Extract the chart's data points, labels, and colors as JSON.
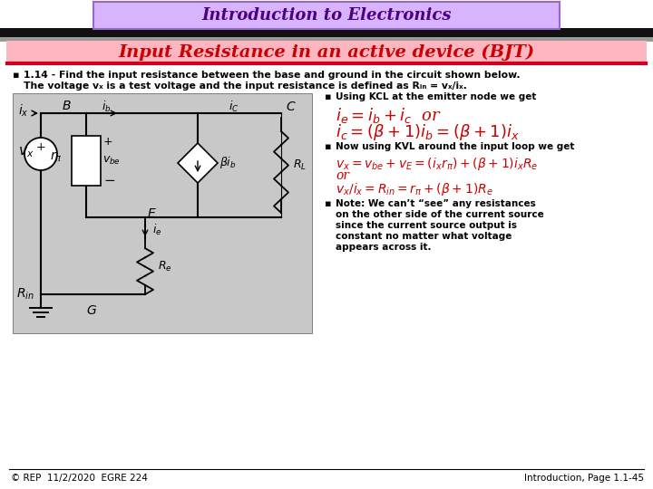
{
  "title": "Introduction to Electronics",
  "subtitle": "Input Resistance in an active device (BJT)",
  "title_bg": "#d8b4fe",
  "title_border": "#9966cc",
  "subtitle_bg": "#ffb6c1",
  "main_bg": "#ffffff",
  "title_color": "#4b0082",
  "subtitle_color": "#cc0000",
  "bullet1a": "1.14 - Find the input resistance between the base and ground in the circuit shown below.",
  "bullet1b": "The voltage vₓ is a test voltage and the input resistance is defined as Rᵢₙ = vₓ/iₓ.",
  "bullet2_hdr": "Using KCL at the emitter node we get",
  "bullet3_hdr": "Now using KVL around the input loop we get",
  "bullet4_lines": [
    "Note: We can’t “see” any resistances",
    "on the other side of the current source",
    "since the current source output is",
    "constant no matter what voltage",
    "appears across it."
  ],
  "footer_left": "© REP  11/2/2020  EGRE 224",
  "footer_right": "Introduction, Page 1.1-45",
  "circuit_bg": "#c8c8c8",
  "red": "#cc0000"
}
